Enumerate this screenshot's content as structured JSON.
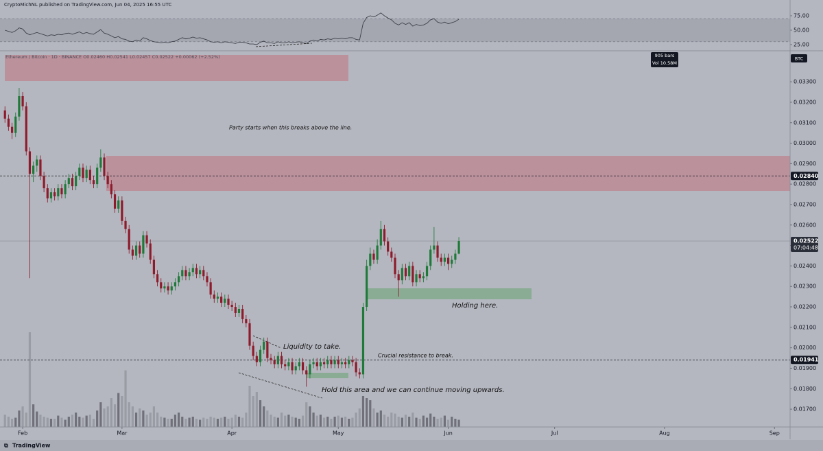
{
  "header": "CryptoMichNL published on TradingView.com, Jun 04, 2025 16:55 UTC",
  "footer": "TradingView",
  "chart_data": {
    "type": "candlestick",
    "symbol": "Ethereum / Bitcoin · 1D · BINANCE",
    "ohlc_legend": [
      "O0.02460",
      "H0.02541",
      "L0.02457",
      "C0.02522",
      "+0.00062 (+2.52%)"
    ],
    "currency": "BTC",
    "info_box": [
      "905 bars",
      "Vol 10.58M"
    ],
    "up_color": "#1f7a3a",
    "down_color": "#8e1b2b",
    "candles": [
      [
        0.0316,
        0.0318,
        0.031,
        0.0312
      ],
      [
        0.0312,
        0.0314,
        0.0306,
        0.0308
      ],
      [
        0.0308,
        0.031,
        0.0302,
        0.0305
      ],
      [
        0.0305,
        0.0315,
        0.0303,
        0.0313
      ],
      [
        0.0313,
        0.0327,
        0.0311,
        0.0323
      ],
      [
        0.0323,
        0.0325,
        0.0316,
        0.0318
      ],
      [
        0.0318,
        0.032,
        0.0294,
        0.0296
      ],
      [
        0.0296,
        0.0298,
        0.0234,
        0.0285
      ],
      [
        0.0285,
        0.0291,
        0.0281,
        0.0289
      ],
      [
        0.0289,
        0.0294,
        0.0286,
        0.0292
      ],
      [
        0.0292,
        0.0294,
        0.0282,
        0.0284
      ],
      [
        0.0284,
        0.0286,
        0.0276,
        0.0278
      ],
      [
        0.0278,
        0.028,
        0.0271,
        0.0273
      ],
      [
        0.0273,
        0.0278,
        0.0271,
        0.0276
      ],
      [
        0.0276,
        0.0278,
        0.0272,
        0.0274
      ],
      [
        0.0274,
        0.028,
        0.0272,
        0.0278
      ],
      [
        0.0278,
        0.028,
        0.0273,
        0.0275
      ],
      [
        0.0275,
        0.0282,
        0.0273,
        0.028
      ],
      [
        0.028,
        0.0285,
        0.0278,
        0.0283
      ],
      [
        0.0283,
        0.0285,
        0.0277,
        0.0279
      ],
      [
        0.0279,
        0.0286,
        0.0277,
        0.0284
      ],
      [
        0.0284,
        0.029,
        0.0282,
        0.0288
      ],
      [
        0.0288,
        0.029,
        0.0281,
        0.0283
      ],
      [
        0.0283,
        0.0289,
        0.0281,
        0.0287
      ],
      [
        0.0287,
        0.0289,
        0.028,
        0.0282
      ],
      [
        0.0282,
        0.0284,
        0.0278,
        0.028
      ],
      [
        0.028,
        0.029,
        0.0278,
        0.0288
      ],
      [
        0.0288,
        0.0297,
        0.0286,
        0.0293
      ],
      [
        0.0293,
        0.0295,
        0.0282,
        0.0284
      ],
      [
        0.0284,
        0.0286,
        0.0278,
        0.028
      ],
      [
        0.028,
        0.0282,
        0.0273,
        0.0275
      ],
      [
        0.0275,
        0.0277,
        0.0266,
        0.0268
      ],
      [
        0.0268,
        0.0274,
        0.0266,
        0.0272
      ],
      [
        0.0272,
        0.0274,
        0.026,
        0.0262
      ],
      [
        0.0262,
        0.0264,
        0.0256,
        0.0258
      ],
      [
        0.0258,
        0.026,
        0.0246,
        0.0248
      ],
      [
        0.0248,
        0.025,
        0.0243,
        0.0245
      ],
      [
        0.0245,
        0.0252,
        0.0243,
        0.025
      ],
      [
        0.025,
        0.0252,
        0.0244,
        0.0246
      ],
      [
        0.0246,
        0.0257,
        0.0244,
        0.0255
      ],
      [
        0.0255,
        0.0257,
        0.0249,
        0.0251
      ],
      [
        0.0251,
        0.0253,
        0.0241,
        0.0243
      ],
      [
        0.0243,
        0.0245,
        0.0234,
        0.0236
      ],
      [
        0.0236,
        0.0238,
        0.023,
        0.0232
      ],
      [
        0.0232,
        0.0234,
        0.0227,
        0.0229
      ],
      [
        0.0229,
        0.0232,
        0.0227,
        0.023
      ],
      [
        0.023,
        0.0232,
        0.0226,
        0.0228
      ],
      [
        0.0228,
        0.0232,
        0.0226,
        0.023
      ],
      [
        0.023,
        0.0234,
        0.0228,
        0.0232
      ],
      [
        0.0232,
        0.0237,
        0.023,
        0.0235
      ],
      [
        0.0235,
        0.024,
        0.0233,
        0.0238
      ],
      [
        0.0238,
        0.024,
        0.0233,
        0.0235
      ],
      [
        0.0235,
        0.0239,
        0.0233,
        0.0237
      ],
      [
        0.0237,
        0.0241,
        0.0235,
        0.0239
      ],
      [
        0.0239,
        0.0241,
        0.0234,
        0.0236
      ],
      [
        0.0236,
        0.024,
        0.0234,
        0.0238
      ],
      [
        0.0238,
        0.024,
        0.0233,
        0.0235
      ],
      [
        0.0235,
        0.0237,
        0.023,
        0.0232
      ],
      [
        0.0232,
        0.0234,
        0.0224,
        0.0226
      ],
      [
        0.0226,
        0.0228,
        0.0222,
        0.0224
      ],
      [
        0.0224,
        0.0227,
        0.0222,
        0.0225
      ],
      [
        0.0225,
        0.0227,
        0.022,
        0.0222
      ],
      [
        0.0222,
        0.0226,
        0.022,
        0.0224
      ],
      [
        0.0224,
        0.0226,
        0.0219,
        0.0221
      ],
      [
        0.0221,
        0.0223,
        0.0218,
        0.022
      ],
      [
        0.022,
        0.0222,
        0.0215,
        0.0217
      ],
      [
        0.0217,
        0.0221,
        0.0215,
        0.0219
      ],
      [
        0.0219,
        0.0221,
        0.0212,
        0.0214
      ],
      [
        0.0214,
        0.0216,
        0.021,
        0.0212
      ],
      [
        0.0212,
        0.0214,
        0.0199,
        0.0201
      ],
      [
        0.0201,
        0.0203,
        0.0194,
        0.0196
      ],
      [
        0.0196,
        0.0198,
        0.0191,
        0.0193
      ],
      [
        0.0193,
        0.0201,
        0.0191,
        0.0199
      ],
      [
        0.0199,
        0.0205,
        0.0197,
        0.0203
      ],
      [
        0.0203,
        0.0205,
        0.0193,
        0.0195
      ],
      [
        0.0195,
        0.0197,
        0.0192,
        0.0194
      ],
      [
        0.0194,
        0.0196,
        0.019,
        0.0192
      ],
      [
        0.0192,
        0.0198,
        0.019,
        0.0196
      ],
      [
        0.0196,
        0.0198,
        0.019,
        0.0192
      ],
      [
        0.0192,
        0.0194,
        0.0189,
        0.0191
      ],
      [
        0.0191,
        0.0195,
        0.0189,
        0.0193
      ],
      [
        0.0193,
        0.0195,
        0.0187,
        0.0189
      ],
      [
        0.0189,
        0.0193,
        0.0187,
        0.0191
      ],
      [
        0.0191,
        0.0195,
        0.0189,
        0.0193
      ],
      [
        0.0193,
        0.0195,
        0.0187,
        0.0189
      ],
      [
        0.0189,
        0.0191,
        0.0181,
        0.0187
      ],
      [
        0.0187,
        0.0194,
        0.0185,
        0.0192
      ],
      [
        0.0192,
        0.0195,
        0.019,
        0.0193
      ],
      [
        0.0193,
        0.0195,
        0.0189,
        0.0191
      ],
      [
        0.0191,
        0.0195,
        0.0189,
        0.0193
      ],
      [
        0.0193,
        0.0195,
        0.019,
        0.0192
      ],
      [
        0.0192,
        0.0196,
        0.019,
        0.0194
      ],
      [
        0.0194,
        0.0196,
        0.019,
        0.0192
      ],
      [
        0.0192,
        0.0196,
        0.019,
        0.0194
      ],
      [
        0.0194,
        0.0196,
        0.019,
        0.0192
      ],
      [
        0.0192,
        0.0195,
        0.019,
        0.0193
      ],
      [
        0.0193,
        0.0195,
        0.019,
        0.0192
      ],
      [
        0.0192,
        0.0196,
        0.019,
        0.0194
      ],
      [
        0.0194,
        0.0196,
        0.0191,
        0.0193
      ],
      [
        0.0193,
        0.0195,
        0.0186,
        0.0188
      ],
      [
        0.0188,
        0.019,
        0.0185,
        0.0187
      ],
      [
        0.0187,
        0.0222,
        0.0185,
        0.022
      ],
      [
        0.022,
        0.0243,
        0.0218,
        0.024
      ],
      [
        0.024,
        0.0249,
        0.0238,
        0.0246
      ],
      [
        0.0246,
        0.0248,
        0.0241,
        0.0243
      ],
      [
        0.0243,
        0.0253,
        0.0241,
        0.025
      ],
      [
        0.025,
        0.0262,
        0.0248,
        0.0258
      ],
      [
        0.0258,
        0.026,
        0.025,
        0.0252
      ],
      [
        0.0252,
        0.0254,
        0.0245,
        0.0247
      ],
      [
        0.0247,
        0.0249,
        0.0242,
        0.0244
      ],
      [
        0.0244,
        0.0246,
        0.0234,
        0.0236
      ],
      [
        0.0236,
        0.0238,
        0.0225,
        0.0233
      ],
      [
        0.0233,
        0.0241,
        0.0231,
        0.0239
      ],
      [
        0.0239,
        0.0241,
        0.0233,
        0.0235
      ],
      [
        0.0235,
        0.0242,
        0.0233,
        0.024
      ],
      [
        0.024,
        0.0242,
        0.023,
        0.0232
      ],
      [
        0.0232,
        0.0238,
        0.023,
        0.0236
      ],
      [
        0.0236,
        0.0238,
        0.0232,
        0.0234
      ],
      [
        0.0234,
        0.0237,
        0.0232,
        0.0235
      ],
      [
        0.0235,
        0.0242,
        0.0233,
        0.024
      ],
      [
        0.024,
        0.025,
        0.0238,
        0.0248
      ],
      [
        0.0248,
        0.0259,
        0.0246,
        0.025
      ],
      [
        0.025,
        0.0252,
        0.0242,
        0.0244
      ],
      [
        0.0244,
        0.0246,
        0.024,
        0.0242
      ],
      [
        0.0242,
        0.0246,
        0.024,
        0.0244
      ],
      [
        0.0244,
        0.0246,
        0.0238,
        0.0241
      ],
      [
        0.0241,
        0.0245,
        0.0239,
        0.0243
      ],
      [
        0.0243,
        0.0248,
        0.0241,
        0.0246
      ],
      [
        0.0246,
        0.02541,
        0.02457,
        0.02522
      ]
    ],
    "volume": [
      12,
      10,
      8,
      9,
      16,
      20,
      14,
      92,
      22,
      15,
      12,
      10,
      9,
      8,
      8,
      11,
      9,
      7,
      10,
      12,
      14,
      10,
      9,
      11,
      12,
      8,
      16,
      24,
      18,
      20,
      28,
      22,
      33,
      30,
      55,
      24,
      20,
      14,
      18,
      16,
      12,
      14,
      20,
      14,
      10,
      9,
      8,
      8,
      12,
      14,
      10,
      8,
      9,
      10,
      8,
      7,
      9,
      8,
      10,
      9,
      8,
      9,
      10,
      8,
      9,
      12,
      10,
      9,
      14,
      40,
      30,
      34,
      26,
      20,
      16,
      12,
      10,
      9,
      14,
      11,
      12,
      10,
      9,
      8,
      11,
      24,
      20,
      14,
      11,
      12,
      9,
      10,
      8,
      10,
      11,
      9,
      10,
      8,
      9,
      14,
      18,
      30,
      28,
      26,
      18,
      14,
      16,
      12,
      10,
      14,
      13,
      10,
      9,
      12,
      10,
      14,
      9,
      8,
      11,
      9,
      13,
      10,
      8,
      9,
      11,
      7,
      10,
      8,
      7
    ],
    "volume_lim": [
      0,
      100
    ],
    "volume_up_color": "#6f7079",
    "volume_down_color": "#9a9ca5",
    "xlim": [
      -1.4,
      221.4
    ],
    "xticks": [
      {
        "value": 5,
        "label": "Feb"
      },
      {
        "value": 33,
        "label": "Mar"
      },
      {
        "value": 64,
        "label": "Apr"
      },
      {
        "value": 94,
        "label": "May"
      },
      {
        "value": 125,
        "label": "Jun"
      },
      {
        "value": 155,
        "label": "Jul"
      },
      {
        "value": 186,
        "label": "Aug"
      },
      {
        "value": 217,
        "label": "Sep"
      }
    ],
    "ylim": [
      0.01613,
      0.03438
    ],
    "yticks": [
      {
        "value": 0.017,
        "label": "0.01700"
      },
      {
        "value": 0.018,
        "label": "0.01800"
      },
      {
        "value": 0.019,
        "label": "0.01900"
      },
      {
        "value": 0.02,
        "label": "0.02000"
      },
      {
        "value": 0.021,
        "label": "0.02100"
      },
      {
        "value": 0.022,
        "label": "0.02200"
      },
      {
        "value": 0.023,
        "label": "0.02300"
      },
      {
        "value": 0.024,
        "label": "0.02400"
      },
      {
        "value": 0.025,
        "label": "0.02500"
      },
      {
        "value": 0.026,
        "label": "0.02600"
      },
      {
        "value": 0.027,
        "label": "0.02700"
      },
      {
        "value": 0.028,
        "label": "0.02800"
      },
      {
        "value": 0.029,
        "label": "0.02900"
      },
      {
        "value": 0.03,
        "label": "0.03000"
      },
      {
        "value": 0.031,
        "label": "0.03100"
      },
      {
        "value": 0.032,
        "label": "0.03200"
      },
      {
        "value": 0.033,
        "label": "0.03300"
      }
    ],
    "price_lines": [
      {
        "value": 0.0284,
        "label": "0.02840",
        "style": "dashed"
      },
      {
        "value": 0.01941,
        "label": "0.01941",
        "style": "dashed"
      }
    ],
    "last_price": {
      "value": 0.02522,
      "label": "0.02522",
      "countdown": "07:04:48"
    },
    "rsi": {
      "color": "#3d3f47",
      "ylim": [
        19,
        85.7
      ],
      "band": [
        30,
        70
      ],
      "yticks": [
        {
          "value": 25,
          "label": "25.00"
        },
        {
          "value": 50,
          "label": "50.00"
        },
        {
          "value": 75,
          "label": "75.00"
        }
      ],
      "values": [
        50,
        48,
        46,
        49,
        54,
        52,
        45,
        42,
        44,
        46,
        44,
        42,
        40,
        42,
        41,
        43,
        42,
        44,
        45,
        43,
        45,
        47,
        44,
        46,
        44,
        43,
        47,
        51,
        45,
        43,
        40,
        37,
        39,
        35,
        34,
        31,
        30,
        33,
        31,
        37,
        35,
        32,
        30,
        29,
        28,
        29,
        28,
        30,
        31,
        34,
        37,
        35,
        36,
        38,
        36,
        37,
        35,
        33,
        30,
        29,
        30,
        28,
        30,
        29,
        28,
        27,
        29,
        29,
        28,
        26,
        26,
        25,
        29,
        31,
        28,
        28,
        27,
        30,
        28,
        28,
        30,
        28,
        29,
        30,
        28,
        27,
        31,
        33,
        31,
        34,
        33,
        35,
        34,
        36,
        35,
        36,
        35,
        37,
        37,
        34,
        33,
        62,
        72,
        75,
        73,
        76,
        80,
        75,
        71,
        68,
        62,
        59,
        63,
        60,
        63,
        57,
        60,
        58,
        59,
        62,
        68,
        70,
        64,
        62,
        64,
        61,
        63,
        65,
        69
      ]
    },
    "annotations": [
      "Party starts when this breaks above the line.",
      "Liquidity to take.",
      "Crucial resistance to break.",
      "Hold this area and we can continue moving upwards.",
      "Holding here."
    ]
  }
}
